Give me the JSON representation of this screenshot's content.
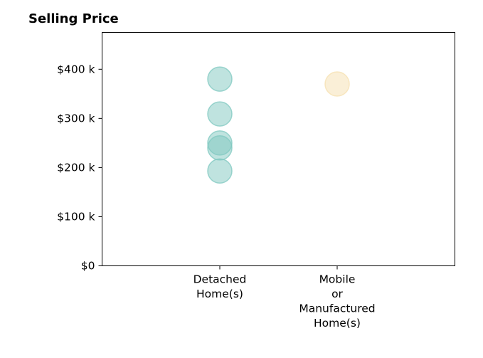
{
  "chart_data": {
    "type": "scatter",
    "title": "Selling Price",
    "xlabel": "",
    "ylabel": "",
    "categories": [
      [
        "Detached",
        "Home(s)"
      ],
      [
        "Mobile",
        "or",
        "Manufactured",
        "Home(s)"
      ]
    ],
    "y_ticks": [
      {
        "value": 0,
        "label": "$0"
      },
      {
        "value": 100000,
        "label": "$100 k"
      },
      {
        "value": 200000,
        "label": "$200 k"
      },
      {
        "value": 300000,
        "label": "$300 k"
      },
      {
        "value": 400000,
        "label": "$400 k"
      }
    ],
    "ylim": [
      0,
      475000
    ],
    "grid": false,
    "series": [
      {
        "category_index": 0,
        "color": "#7fc8c0",
        "values": [
          380000,
          309000,
          250000,
          240000,
          193000
        ]
      },
      {
        "category_index": 1,
        "color": "#f5e0b0",
        "values": [
          370000
        ]
      }
    ]
  }
}
